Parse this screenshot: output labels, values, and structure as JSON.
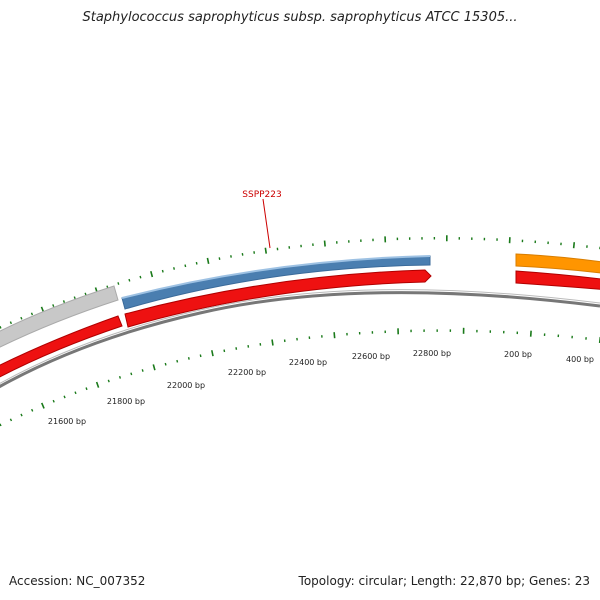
{
  "title": "Staphylococcus saprophyticus subsp. saprophyticus ATCC 15305...",
  "footer": {
    "accession": "Accession: NC_007352",
    "summary": "Topology: circular; Length: 22,870 bp; Genes: 23"
  },
  "gene_label": "SSPP223",
  "ticks": [
    "21600 bp",
    "21800 bp",
    "22000 bp",
    "22200 bp",
    "22400 bp",
    "22600 bp",
    "22800 bp",
    "200 bp",
    "400 bp"
  ],
  "colors": {
    "gray_track": "#c8c8c8",
    "blue_track": "#4a7eb0",
    "orange_track": "#ff9500",
    "red_track": "#ee1111",
    "backbone": "#777777",
    "tick_green": "#1a7a1a",
    "label_red": "#cc0000"
  }
}
